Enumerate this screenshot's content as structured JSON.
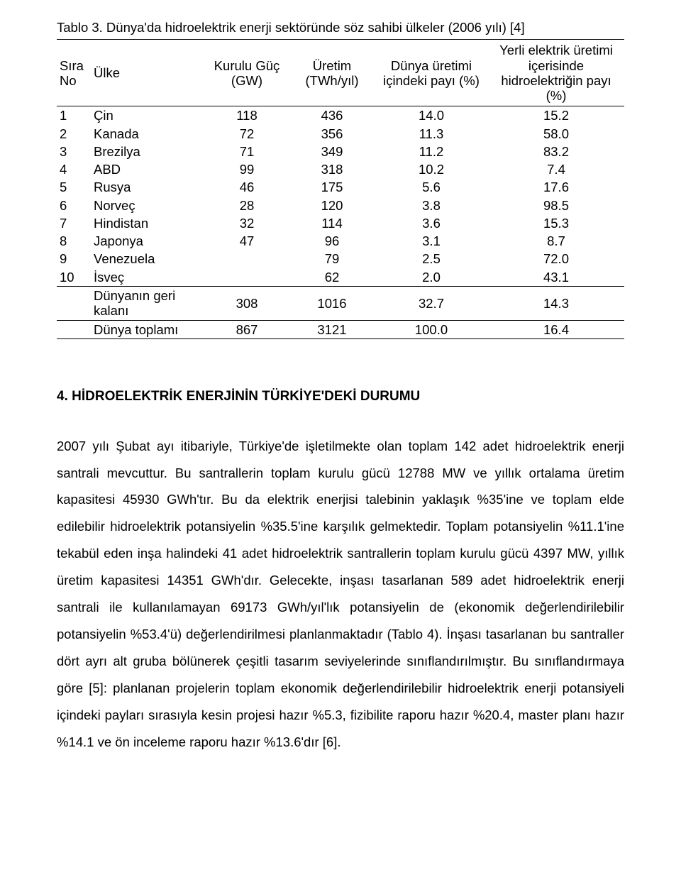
{
  "table": {
    "caption": "Tablo 3. Dünya'da hidroelektrik enerji sektöründe söz sahibi ülkeler (2006 yılı) [4]",
    "columns": {
      "no": "Sıra No",
      "ulke": "Ülke",
      "gw": "Kurulu Güç (GW)",
      "twh": "Üretim (TWh/yıl)",
      "pay1": "Dünya üretimi içindeki payı (%)",
      "pay2": "Yerli elektrik üretimi içerisinde hidroelektriğin payı (%)"
    },
    "rows": [
      {
        "no": "1",
        "ulke": "Çin",
        "gw": "118",
        "twh": "436",
        "pay1": "14.0",
        "pay2": "15.2"
      },
      {
        "no": "2",
        "ulke": "Kanada",
        "gw": "72",
        "twh": "356",
        "pay1": "11.3",
        "pay2": "58.0"
      },
      {
        "no": "3",
        "ulke": "Brezilya",
        "gw": "71",
        "twh": "349",
        "pay1": "11.2",
        "pay2": "83.2"
      },
      {
        "no": "4",
        "ulke": "ABD",
        "gw": "99",
        "twh": "318",
        "pay1": "10.2",
        "pay2": "7.4"
      },
      {
        "no": "5",
        "ulke": "Rusya",
        "gw": "46",
        "twh": "175",
        "pay1": "5.6",
        "pay2": "17.6"
      },
      {
        "no": "6",
        "ulke": "Norveç",
        "gw": "28",
        "twh": "120",
        "pay1": "3.8",
        "pay2": "98.5"
      },
      {
        "no": "7",
        "ulke": "Hindistan",
        "gw": "32",
        "twh": "114",
        "pay1": "3.6",
        "pay2": "15.3"
      },
      {
        "no": "8",
        "ulke": "Japonya",
        "gw": "47",
        "twh": "96",
        "pay1": "3.1",
        "pay2": "8.7"
      },
      {
        "no": "9",
        "ulke": "Venezuela",
        "gw": "",
        "twh": "79",
        "pay1": "2.5",
        "pay2": "72.0"
      },
      {
        "no": "10",
        "ulke": "İsveç",
        "gw": "",
        "twh": "62",
        "pay1": "2.0",
        "pay2": "43.1"
      }
    ],
    "summary": [
      {
        "no": "",
        "ulke": "Dünyanın geri kalanı",
        "gw": "308",
        "twh": "1016",
        "pay1": "32.7",
        "pay2": "14.3"
      },
      {
        "no": "",
        "ulke": "Dünya toplamı",
        "gw": "867",
        "twh": "3121",
        "pay1": "100.0",
        "pay2": "16.4"
      }
    ]
  },
  "section": {
    "heading": "4. HİDROELEKTRİK ENERJİNİN TÜRKİYE'DEKİ DURUMU",
    "paragraph": "2007 yılı Şubat ayı itibariyle, Türkiye'de işletilmekte olan toplam 142 adet hidroelektrik enerji santrali mevcuttur. Bu santrallerin toplam kurulu gücü 12788 MW ve yıllık ortalama üretim kapasitesi 45930 GWh'tır. Bu da elektrik enerjisi talebinin yaklaşık %35'ine ve toplam elde edilebilir hidroelektrik potansiyelin %35.5'ine karşılık gelmektedir. Toplam potansiyelin %11.1'ine tekabül eden inşa halindeki 41 adet hidroelektrik santrallerin toplam kurulu gücü 4397 MW, yıllık üretim kapasitesi 14351 GWh'dır. Gelecekte, inşası tasarlanan 589 adet hidroelektrik enerji santrali ile kullanılamayan 69173 GWh/yıl'lık potansiyelin de (ekonomik değerlendirilebilir potansiyelin %53.4'ü) değerlendirilmesi planlanmaktadır (Tablo 4). İnşası tasarlanan bu santraller dört ayrı alt gruba bölünerek çeşitli tasarım seviyelerinde sınıflandırılmıştır. Bu sınıflandırmaya göre [5]: planlanan projelerin toplam ekonomik değerlendirilebilir hidroelektrik enerji potansiyeli içindeki payları sırasıyla kesin projesi hazır %5.3, fizibilite raporu hazır %20.4, master planı hazır %14.1 ve ön inceleme raporu hazır %13.6'dır [6]."
  }
}
